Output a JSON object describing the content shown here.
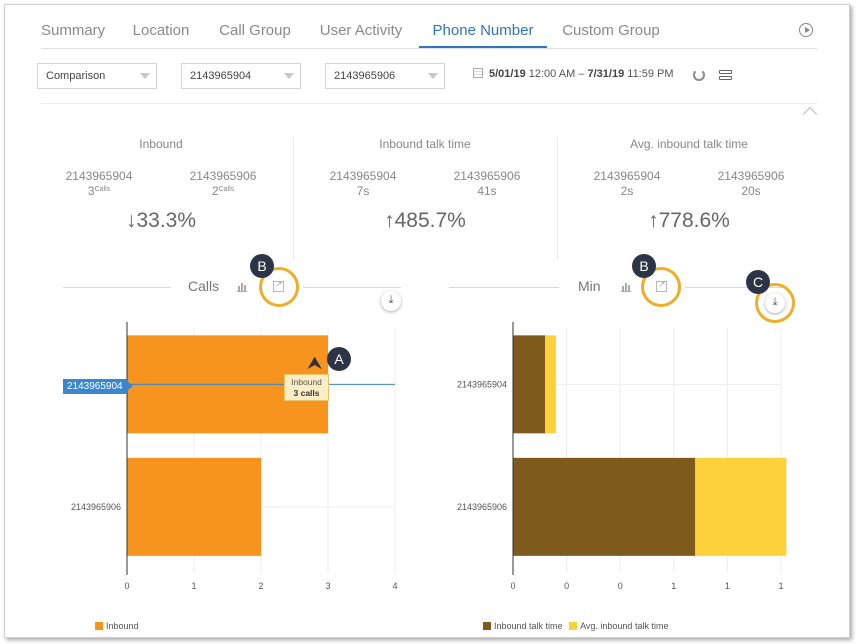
{
  "tabs": [
    "Summary",
    "Location",
    "Call Group",
    "User Activity",
    "Phone Number",
    "Custom Group"
  ],
  "active_tab": "Phone Number",
  "filters": {
    "mode": "Comparison",
    "number_a": "2143965904",
    "number_b": "2143965906",
    "start_date": "5/01/19",
    "start_time": "12:00 AM",
    "range_sep": "–",
    "end_date": "7/31/19",
    "end_time": "11:59 PM"
  },
  "metrics": [
    {
      "title": "Inbound",
      "a_num": "2143965904",
      "a_val": "3",
      "a_unit": "Calls",
      "b_num": "2143965906",
      "b_val": "2",
      "b_unit": "Calls",
      "arrow": "↓",
      "pct": "33.3%"
    },
    {
      "title": "Inbound talk time",
      "a_num": "2143965904",
      "a_val": "7s",
      "a_unit": "",
      "b_num": "2143965906",
      "b_val": "41s",
      "b_unit": "",
      "arrow": "↑",
      "pct": "485.7%"
    },
    {
      "title": "Avg. inbound talk time",
      "a_num": "2143965904",
      "a_val": "2s",
      "a_unit": "",
      "b_num": "2143965906",
      "b_val": "20s",
      "b_unit": "",
      "arrow": "↑",
      "pct": "778.6%"
    }
  ],
  "callouts": {
    "a": "A",
    "b": "B",
    "c": "C"
  },
  "download_glyph": "⤓",
  "tooltip": {
    "label": "Inbound",
    "value": "3 calls"
  },
  "colors": {
    "orange": "#f7941d",
    "brown": "#7e5a1d",
    "yellow": "#fdd13a",
    "blue": "#3a86cf",
    "accent": "#2f74c0",
    "ring": "#f0ad28"
  },
  "chart_data": [
    {
      "type": "bar",
      "orientation": "horizontal",
      "title": "Calls",
      "categories": [
        "2143965904",
        "2143965906"
      ],
      "series": [
        {
          "name": "Inbound",
          "values": [
            3,
            2
          ]
        }
      ],
      "xlim": [
        0,
        4
      ],
      "xticks": [
        "0",
        "1",
        "2",
        "3",
        "4"
      ],
      "grid": true,
      "legend": "bottom-left"
    },
    {
      "type": "bar",
      "orientation": "horizontal",
      "stacked": true,
      "title": "Min",
      "categories": [
        "2143965904",
        "2143965906"
      ],
      "series": [
        {
          "name": "Inbound talk time",
          "values": [
            0.12,
            0.68
          ]
        },
        {
          "name": "Avg. inbound talk time",
          "values": [
            0.04,
            0.34
          ]
        }
      ],
      "xlim": [
        0,
        1
      ],
      "xticks": [
        "0",
        "0",
        "0",
        "1",
        "1",
        "1"
      ],
      "grid": true,
      "legend": "bottom-left"
    }
  ]
}
